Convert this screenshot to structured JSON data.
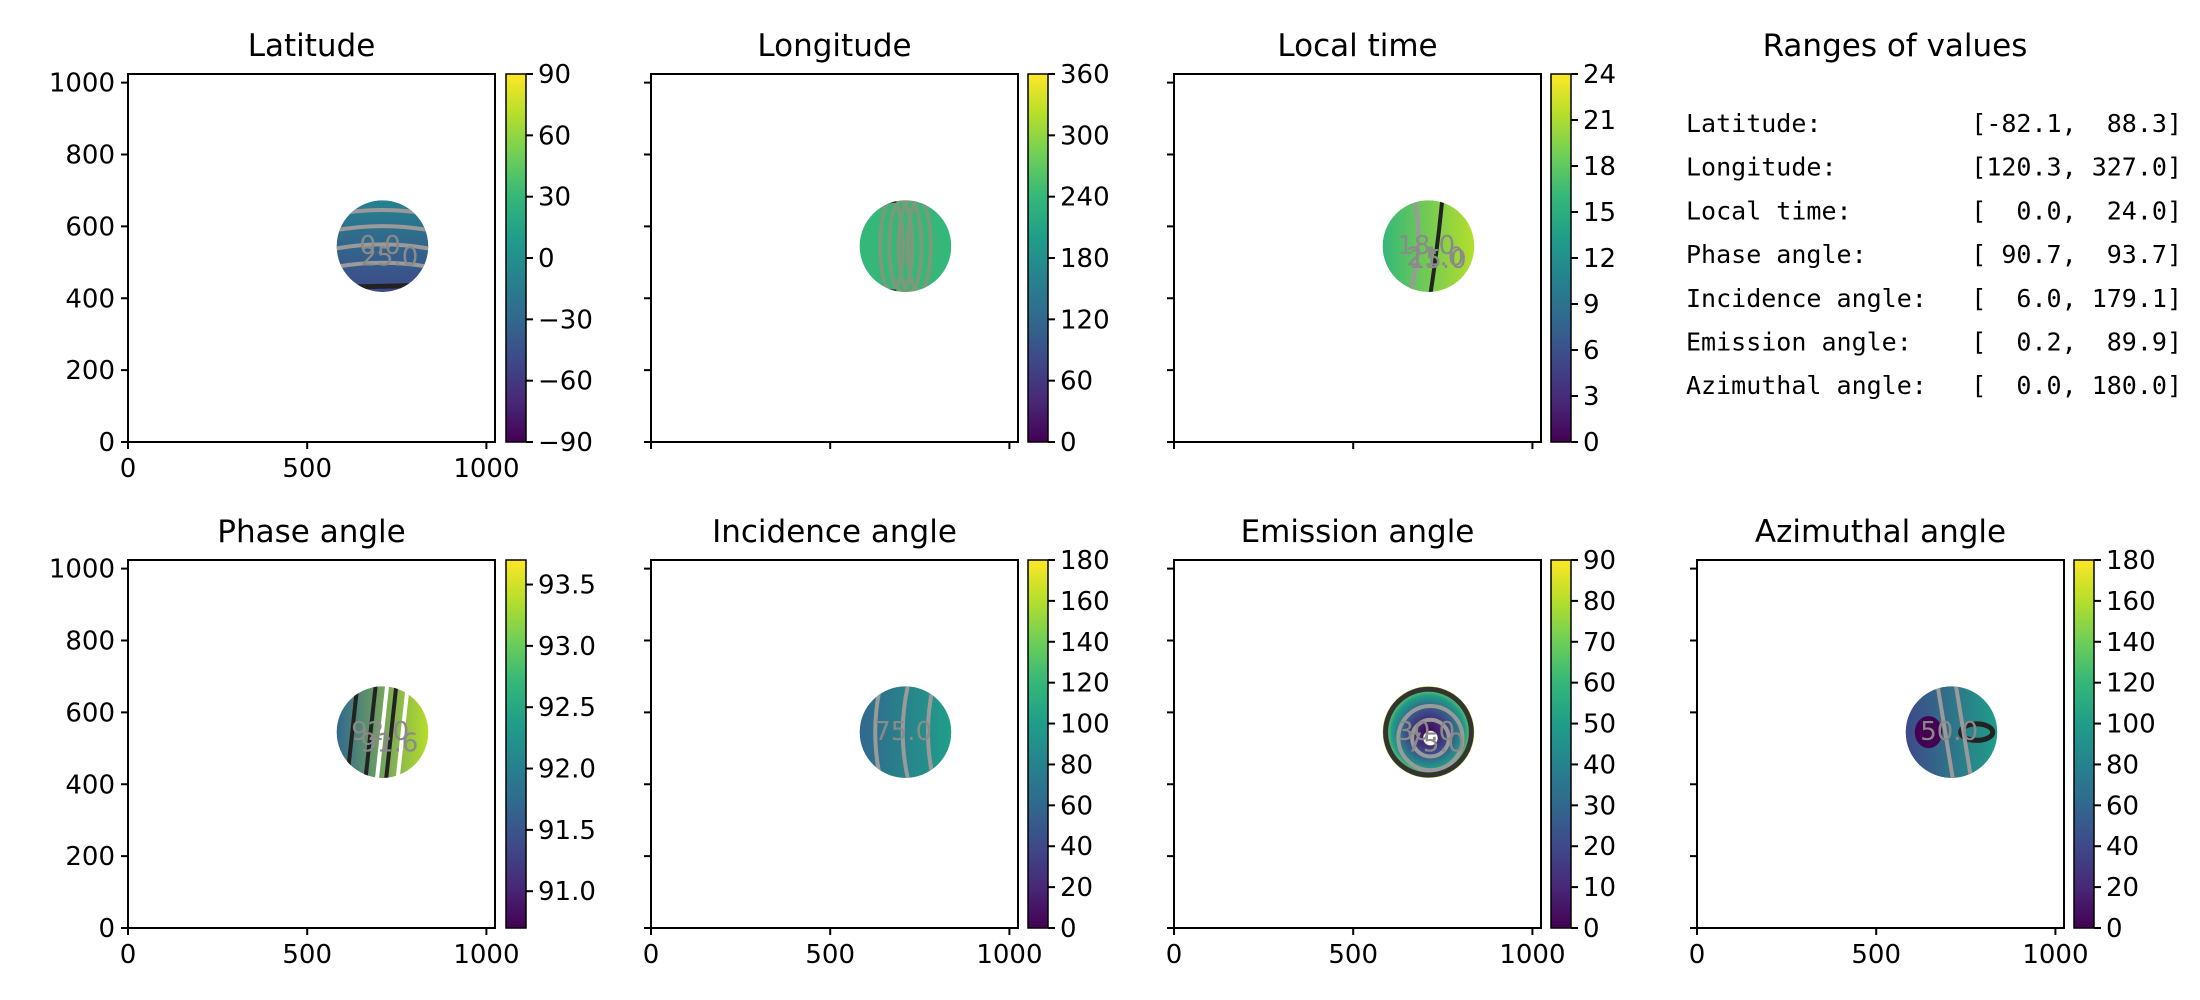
{
  "colormap": {
    "name": "viridis",
    "stops": [
      "#440154",
      "#482878",
      "#3e4989",
      "#31688e",
      "#26828e",
      "#1f9e89",
      "#35b779",
      "#6ece58",
      "#b5de2b",
      "#fde725"
    ]
  },
  "contour_colors": {
    "light": "#9a9a9a",
    "dark": "#222222",
    "edge": "#333333"
  },
  "chart_data": [
    {
      "type": "heatmap",
      "title": "Latitude",
      "x_ticks": [
        "0",
        "500",
        "1000"
      ],
      "y_ticks": [
        "0",
        "200",
        "400",
        "600",
        "800",
        "1000"
      ],
      "xlim": [
        0,
        1024
      ],
      "ylim": [
        0,
        1024
      ],
      "disk": {
        "cx": 710,
        "cy": 545,
        "r": 128
      },
      "vrange": [
        -90,
        90
      ],
      "cbar_ticks": [
        "90",
        "60",
        "30",
        "0",
        "−30",
        "−60",
        "−90"
      ],
      "value_range": [
        -82.1,
        88.3
      ],
      "contour_labels": [
        "0.0",
        "25.0"
      ]
    },
    {
      "type": "heatmap",
      "title": "Longitude",
      "x_ticks": [
        "",
        "",
        ""
      ],
      "y_ticks": [
        "",
        "",
        "",
        "",
        "",
        ""
      ],
      "xlim": [
        0,
        1024
      ],
      "ylim": [
        0,
        1024
      ],
      "disk": {
        "cx": 710,
        "cy": 545,
        "r": 128
      },
      "vrange": [
        0,
        360
      ],
      "cbar_ticks": [
        "360",
        "300",
        "240",
        "180",
        "120",
        "60",
        "0"
      ],
      "value_range": [
        120.3,
        327.0
      ],
      "contour_labels": []
    },
    {
      "type": "heatmap",
      "title": "Local time",
      "x_ticks": [
        "",
        "",
        ""
      ],
      "y_ticks": [
        "",
        "",
        "",
        "",
        "",
        ""
      ],
      "xlim": [
        0,
        1024
      ],
      "ylim": [
        0,
        1024
      ],
      "disk": {
        "cx": 710,
        "cy": 545,
        "r": 128
      },
      "vrange": [
        0,
        24
      ],
      "cbar_ticks": [
        "24",
        "21",
        "18",
        "15",
        "12",
        "9",
        "6",
        "3",
        "0"
      ],
      "value_range": [
        0.0,
        24.0
      ],
      "contour_labels": [
        "18.0",
        "21.0",
        "15.0"
      ]
    },
    {
      "type": "table",
      "title": "Ranges of values",
      "rows": [
        {
          "label": "Latitude:",
          "range": "[-82.1,  88.3]"
        },
        {
          "label": "Longitude:",
          "range": "[120.3, 327.0]"
        },
        {
          "label": "Local time:",
          "range": "[  0.0,  24.0]"
        },
        {
          "label": "Phase angle:",
          "range": "[ 90.7,  93.7]"
        },
        {
          "label": "Incidence angle:",
          "range": "[  6.0, 179.1]"
        },
        {
          "label": "Emission angle:",
          "range": "[  0.2,  89.9]"
        },
        {
          "label": "Azimuthal angle:",
          "range": "[  0.0, 180.0]"
        }
      ]
    },
    {
      "type": "heatmap",
      "title": "Phase angle",
      "x_ticks": [
        "0",
        "500",
        "1000"
      ],
      "y_ticks": [
        "0",
        "200",
        "400",
        "600",
        "800",
        "1000"
      ],
      "xlim": [
        0,
        1024
      ],
      "ylim": [
        0,
        1024
      ],
      "disk": {
        "cx": 710,
        "cy": 545,
        "r": 128
      },
      "vrange": [
        90.7,
        93.7
      ],
      "cbar_ticks": [
        "93.5",
        "93.0",
        "92.5",
        "92.0",
        "91.5",
        "91.0"
      ],
      "cbar_tick_values": [
        93.5,
        93.0,
        92.5,
        92.0,
        91.5,
        91.0
      ],
      "value_range": [
        90.7,
        93.7
      ],
      "contour_labels": [
        "92.0",
        "91.6"
      ]
    },
    {
      "type": "heatmap",
      "title": "Incidence angle",
      "x_ticks": [
        "0",
        "500",
        "1000"
      ],
      "y_ticks": [
        "",
        "",
        "",
        "",
        "",
        ""
      ],
      "xlim": [
        0,
        1024
      ],
      "ylim": [
        0,
        1024
      ],
      "disk": {
        "cx": 710,
        "cy": 545,
        "r": 128
      },
      "vrange": [
        0,
        180
      ],
      "cbar_ticks": [
        "180",
        "160",
        "140",
        "120",
        "100",
        "80",
        "60",
        "40",
        "20",
        "0"
      ],
      "value_range": [
        6.0,
        179.1
      ],
      "contour_labels": [
        "75.0"
      ]
    },
    {
      "type": "heatmap",
      "title": "Emission angle",
      "x_ticks": [
        "0",
        "500",
        "1000"
      ],
      "y_ticks": [
        "",
        "",
        "",
        "",
        "",
        ""
      ],
      "xlim": [
        0,
        1024
      ],
      "ylim": [
        0,
        1024
      ],
      "disk": {
        "cx": 710,
        "cy": 545,
        "r": 128
      },
      "vrange": [
        0,
        90
      ],
      "cbar_ticks": [
        "90",
        "80",
        "70",
        "60",
        "50",
        "40",
        "30",
        "20",
        "10",
        "0"
      ],
      "value_range": [
        0.2,
        89.9
      ],
      "contour_labels": [
        "30.0",
        "75.0"
      ]
    },
    {
      "type": "heatmap",
      "title": "Azimuthal angle",
      "x_ticks": [
        "0",
        "500",
        "1000"
      ],
      "y_ticks": [
        "",
        "",
        "",
        "",
        "",
        ""
      ],
      "xlim": [
        0,
        1024
      ],
      "ylim": [
        0,
        1024
      ],
      "disk": {
        "cx": 710,
        "cy": 545,
        "r": 128
      },
      "vrange": [
        0,
        180
      ],
      "cbar_ticks": [
        "180",
        "160",
        "140",
        "120",
        "100",
        "80",
        "60",
        "40",
        "20",
        "0"
      ],
      "value_range": [
        0.0,
        180.0
      ],
      "contour_labels": [
        "50.0"
      ]
    }
  ]
}
